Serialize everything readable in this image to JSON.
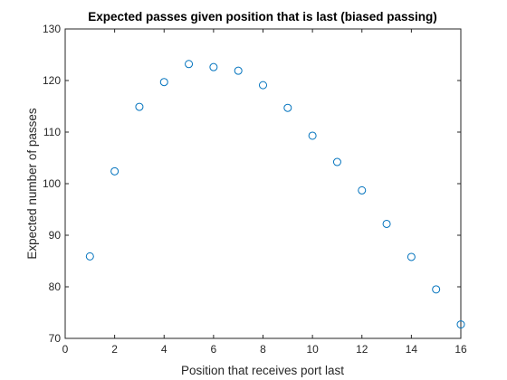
{
  "chart_data": {
    "type": "scatter",
    "title": "Expected passes given position that is last (biased passing)",
    "xlabel": "Position that receives port last",
    "ylabel": "Expected number of passes",
    "xlim": [
      0,
      16
    ],
    "ylim": [
      70,
      130
    ],
    "xticks": [
      0,
      2,
      4,
      6,
      8,
      10,
      12,
      14,
      16
    ],
    "yticks": [
      70,
      80,
      90,
      100,
      110,
      120,
      130
    ],
    "grid": true,
    "marker": "open-circle",
    "color": "#0072BD",
    "x": [
      1,
      2,
      3,
      4,
      5,
      6,
      7,
      8,
      9,
      10,
      11,
      12,
      13,
      14,
      15,
      16
    ],
    "y": [
      85.9,
      102.4,
      114.9,
      119.7,
      123.2,
      122.6,
      121.9,
      119.1,
      114.7,
      109.3,
      104.2,
      98.7,
      92.2,
      85.8,
      79.5,
      72.7
    ]
  }
}
